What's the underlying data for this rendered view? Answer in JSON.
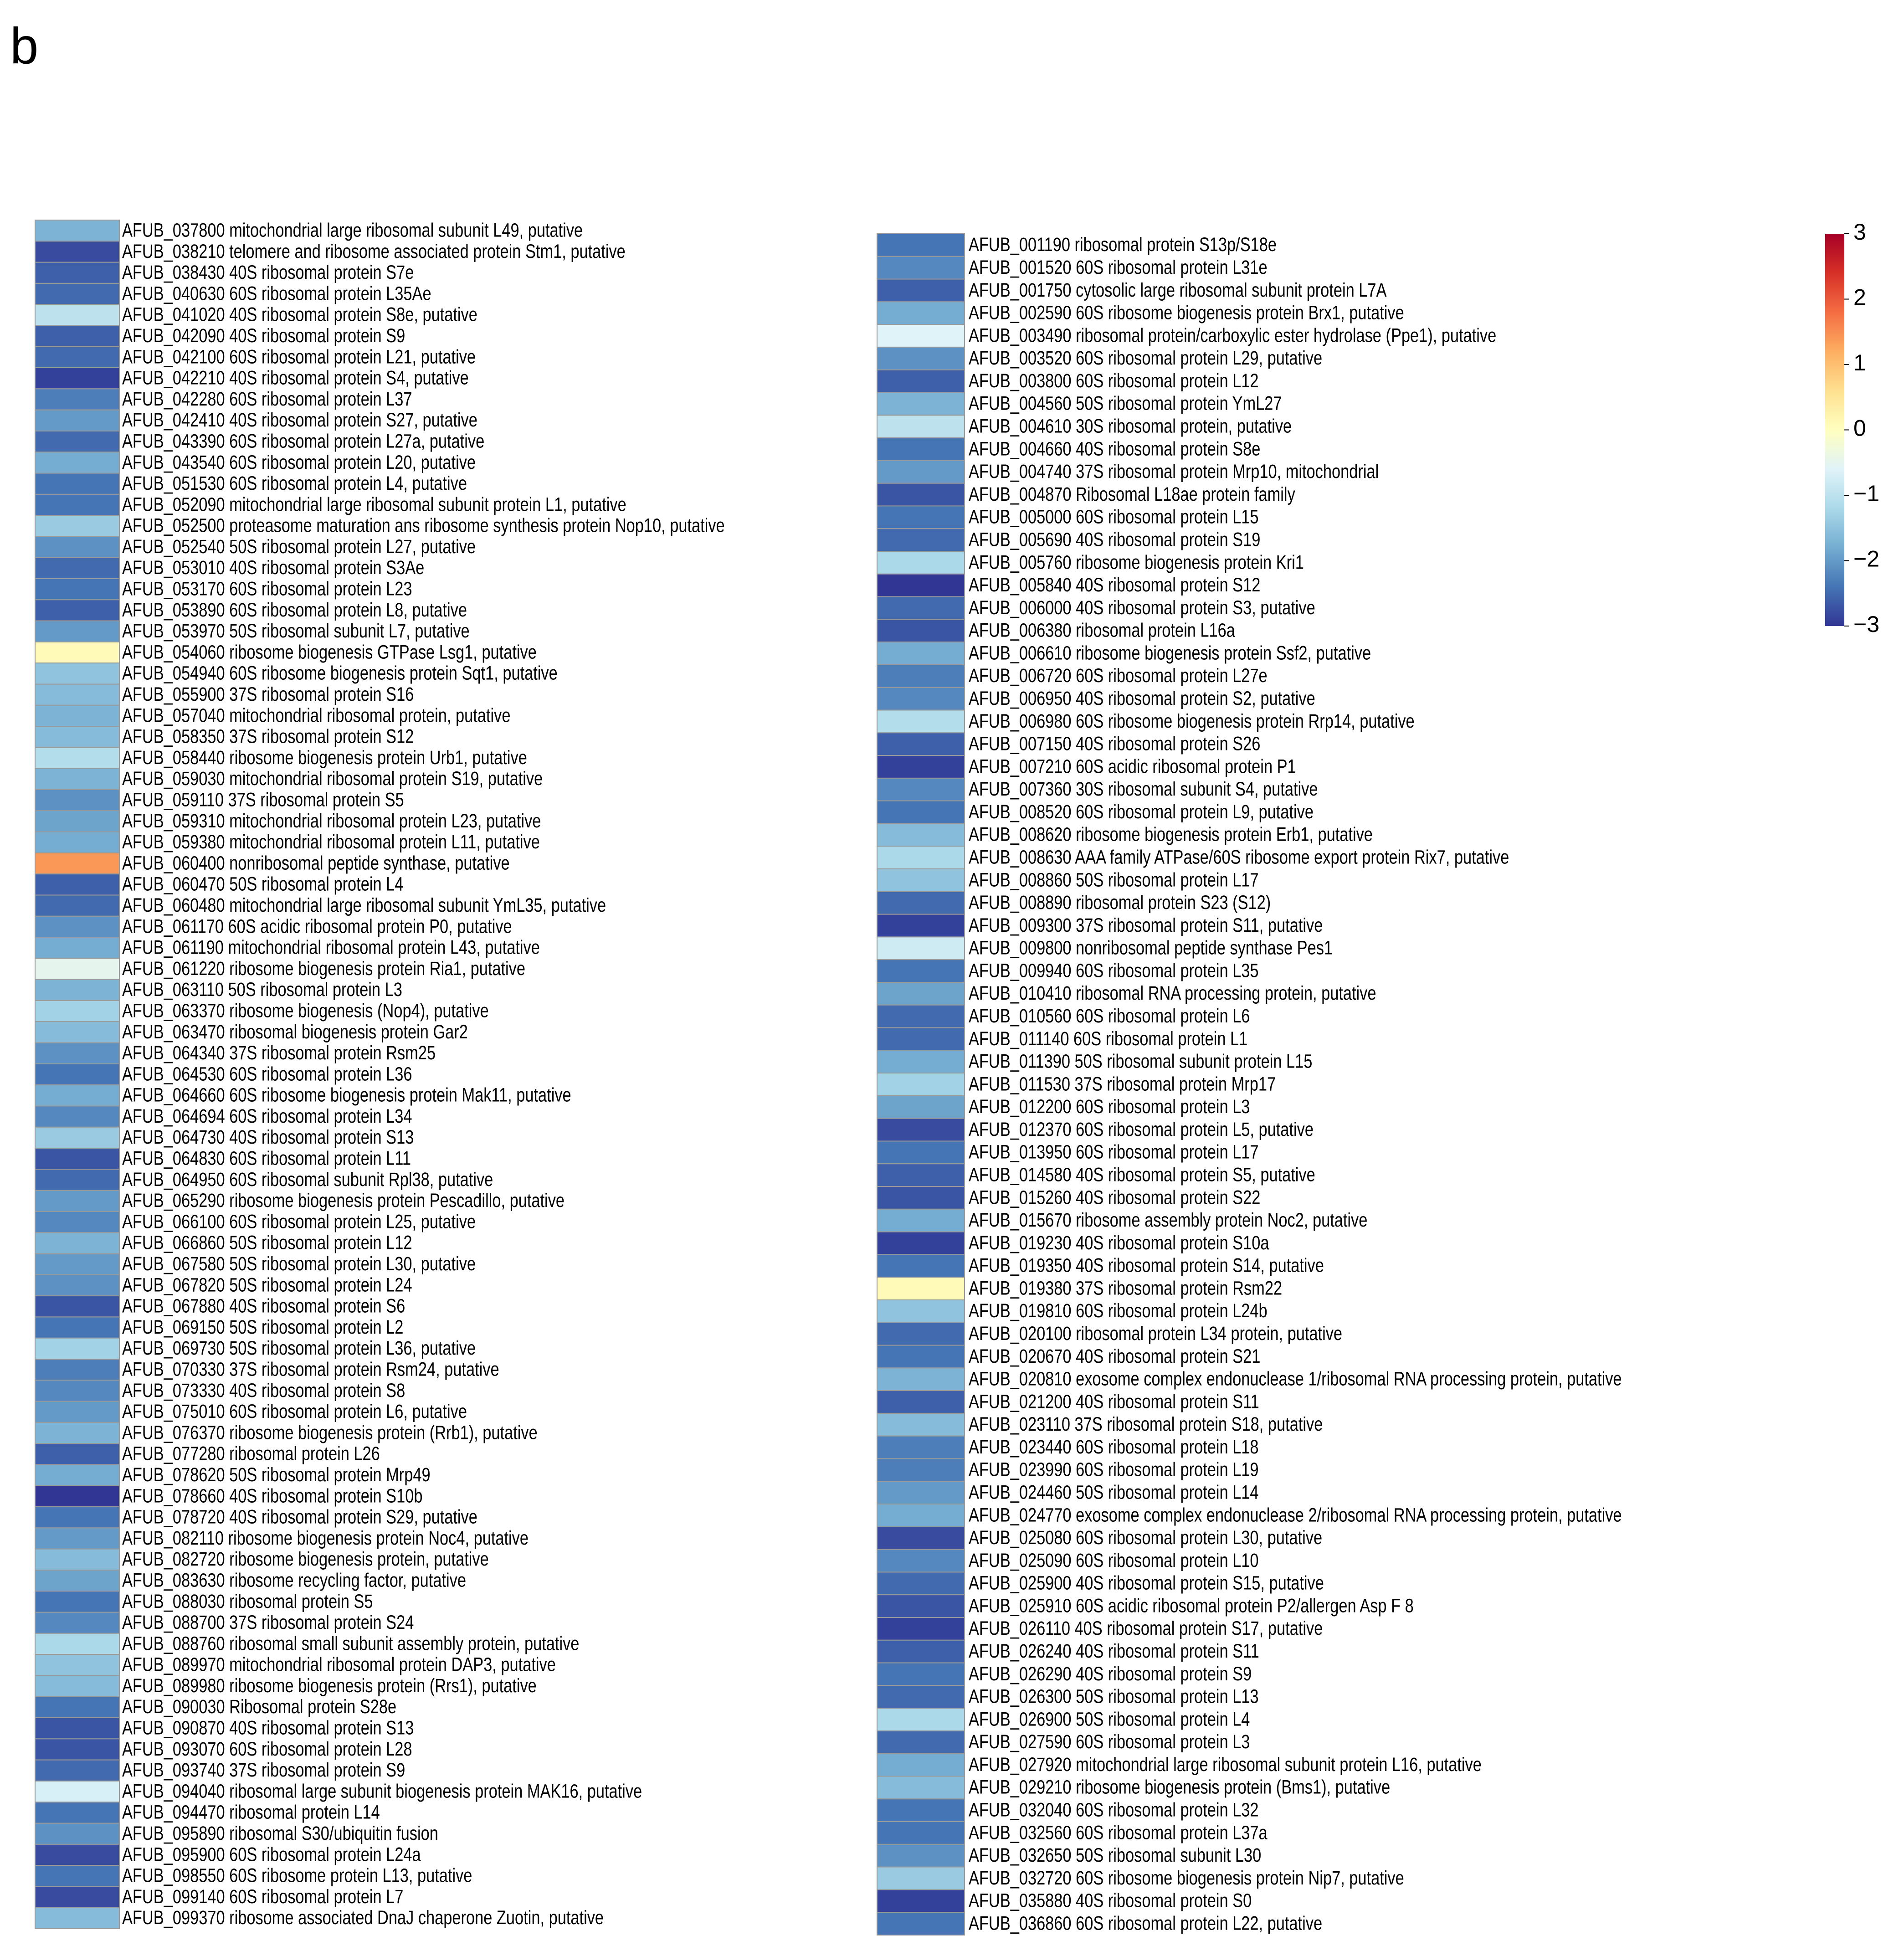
{
  "panel_label": "b",
  "chart_data": [
    {
      "type": "heatmap",
      "categories": [
        "AFUB_037800 mitochondrial large ribosomal subunit L49, putative",
        "AFUB_038210 telomere and ribosome associated protein Stm1, putative",
        "AFUB_038430 40S ribosomal protein S7e",
        "AFUB_040630 60S ribosomal protein L35Ae",
        "AFUB_041020 40S ribosomal protein S8e, putative",
        "AFUB_042090 40S ribosomal protein S9",
        "AFUB_042100 60S ribosomal protein L21, putative",
        "AFUB_042210 40S ribosomal protein S4, putative",
        "AFUB_042280 60S ribosomal protein L37",
        "AFUB_042410 40S ribosomal protein S27, putative",
        "AFUB_043390 60S ribosomal protein L27a, putative",
        "AFUB_043540 60S ribosomal protein L20, putative",
        "AFUB_051530 60S ribosomal protein L4, putative",
        "AFUB_052090 mitochondrial large ribosomal subunit protein L1, putative",
        "AFUB_052500 proteasome maturation ans ribosome synthesis protein Nop10, putative",
        "AFUB_052540 50S ribosomal protein L27, putative",
        "AFUB_053010 40S ribosomal protein S3Ae",
        "AFUB_053170 60S ribosomal protein L23",
        "AFUB_053890 60S ribosomal protein L8, putative",
        "AFUB_053970 50S ribosomal subunit L7, putative",
        "AFUB_054060 ribosome biogenesis GTPase Lsg1, putative",
        "AFUB_054940 60S ribosome biogenesis protein Sqt1, putative",
        "AFUB_055900 37S ribosomal protein S16",
        "AFUB_057040 mitochondrial ribosomal protein, putative",
        "AFUB_058350 37S ribosomal protein S12",
        "AFUB_058440 ribosome biogenesis protein Urb1, putative",
        "AFUB_059030 mitochondrial ribosomal protein S19, putative",
        "AFUB_059110 37S ribosomal protein S5",
        "AFUB_059310 mitochondrial ribosomal protein L23, putative",
        "AFUB_059380 mitochondrial ribosomal protein L11, putative",
        "AFUB_060400 nonribosomal peptide synthase, putative",
        "AFUB_060470 50S ribosomal protein L4",
        "AFUB_060480 mitochondrial large ribosomal subunit YmL35, putative",
        "AFUB_061170 60S acidic ribosomal protein P0, putative",
        "AFUB_061190 mitochondrial ribosomal protein L43, putative",
        "AFUB_061220 ribosome biogenesis protein Ria1, putative",
        "AFUB_063110 50S ribosomal protein L3",
        "AFUB_063370 ribosome biogenesis (Nop4), putative",
        "AFUB_063470 ribosomal biogenesis protein Gar2",
        "AFUB_064340 37S ribosomal protein Rsm25",
        "AFUB_064530 60S ribosomal protein L36",
        "AFUB_064660 60S ribosome biogenesis protein Mak11, putative",
        "AFUB_064694 60S ribosomal protein L34",
        "AFUB_064730 40S ribosomal protein S13",
        "AFUB_064830 60S ribosomal protein L11",
        "AFUB_064950 60S ribosomal subunit Rpl38, putative",
        "AFUB_065290 ribosome biogenesis protein Pescadillo, putative",
        "AFUB_066100 60S ribosomal protein L25, putative",
        "AFUB_066860 50S ribosomal protein L12",
        "AFUB_067580 50S ribosomal protein L30, putative",
        "AFUB_067820 50S ribosomal protein L24",
        "AFUB_067880 40S ribosomal protein S6",
        "AFUB_069150 50S ribosomal protein L2",
        "AFUB_069730 50S ribosomal protein L36, putative",
        "AFUB_070330 37S ribosomal protein Rsm24, putative",
        "AFUB_073330 40S ribosomal protein S8",
        "AFUB_075010 60S ribosomal protein L6, putative",
        "AFUB_076370 ribosome biogenesis protein (Rrb1), putative",
        "AFUB_077280 ribosomal protein L26",
        "AFUB_078620 50S ribosomal protein Mrp49",
        "AFUB_078660 40S ribosomal protein S10b",
        "AFUB_078720 40S ribosomal protein S29, putative",
        "AFUB_082110 ribosome biogenesis protein Noc4, putative",
        "AFUB_082720 ribosome biogenesis protein, putative",
        "AFUB_083630 ribosome recycling factor, putative",
        "AFUB_088030 ribosomal protein S5",
        "AFUB_088700 37S ribosomal protein S24",
        "AFUB_088760 ribosomal small subunit assembly protein, putative",
        "AFUB_089970 mitochondrial ribosomal protein DAP3, putative",
        "AFUB_089980 ribosome biogenesis protein (Rrs1), putative",
        "AFUB_090030 Ribosomal protein S28e",
        "AFUB_090870 40S ribosomal protein S13",
        "AFUB_093070 60S ribosomal protein L28",
        "AFUB_093740 37S ribosomal protein S9",
        "AFUB_094040 ribosomal large subunit biogenesis protein MAK16, putative",
        "AFUB_094470 ribosomal protein L14",
        "AFUB_095890 ribosomal S30/ubiquitin fusion",
        "AFUB_095900 60S ribosomal protein L24a",
        "AFUB_098550 60S ribosome protein L13, putative",
        "AFUB_099140 60S ribosomal protein L7",
        "AFUB_099370 ribosome associated DnaJ chaperone Zuotin, putative"
      ],
      "values": [
        -1.7,
        -2.8,
        -2.6,
        -2.5,
        -1.0,
        -2.6,
        -2.5,
        -2.9,
        -2.3,
        -2.0,
        -2.5,
        -1.8,
        -2.4,
        -2.4,
        -1.4,
        -2.1,
        -2.5,
        -2.4,
        -2.6,
        -2.0,
        0.1,
        -1.5,
        -1.6,
        -1.7,
        -1.6,
        -1.1,
        -1.7,
        -2.1,
        -1.9,
        -1.8,
        1.4,
        -2.6,
        -2.5,
        -2.1,
        -1.8,
        -0.5,
        -1.7,
        -1.3,
        -1.6,
        -2.1,
        -2.4,
        -1.8,
        -2.2,
        -1.4,
        -2.7,
        -2.5,
        -2.0,
        -2.2,
        -1.7,
        -2.0,
        -2.1,
        -2.7,
        -2.4,
        -1.3,
        -2.3,
        -2.2,
        -2.0,
        -1.7,
        -2.6,
        -1.8,
        -3.0,
        -2.4,
        -2.0,
        -1.6,
        -1.9,
        -2.4,
        -2.2,
        -1.2,
        -1.5,
        -1.6,
        -2.4,
        -2.7,
        -2.7,
        -2.5,
        -0.7,
        -2.4,
        -2.1,
        -2.8,
        -2.4,
        -2.8,
        -1.6
      ]
    },
    {
      "type": "heatmap",
      "categories": [
        "AFUB_001190 ribosomal protein S13p/S18e",
        "AFUB_001520 60S ribosomal protein L31e",
        "AFUB_001750 cytosolic large ribosomal subunit protein L7A",
        "AFUB_002590 60S ribosome biogenesis protein Brx1, putative",
        "AFUB_003490 ribosomal protein/carboxylic ester hydrolase (Ppe1), putative",
        "AFUB_003520 60S ribosomal protein L29, putative",
        "AFUB_003800 60S ribosomal protein L12",
        "AFUB_004560 50S ribosomal protein YmL27",
        "AFUB_004610 30S ribosomal protein, putative",
        "AFUB_004660 40S ribosomal protein S8e",
        "AFUB_004740 37S ribosomal protein Mrp10, mitochondrial",
        "AFUB_004870 Ribosomal L18ae protein family",
        "AFUB_005000 60S ribosomal protein L15",
        "AFUB_005690 40S ribosomal protein S19",
        "AFUB_005760 ribosome biogenesis protein Kri1",
        "AFUB_005840 40S ribosomal protein S12",
        "AFUB_006000 40S ribosomal protein S3, putative",
        "AFUB_006380 ribosomal protein L16a",
        "AFUB_006610 ribosome biogenesis protein Ssf2, putative",
        "AFUB_006720 60S ribosomal protein L27e",
        "AFUB_006950 40S ribosomal protein S2, putative",
        "AFUB_006980 60S ribosome biogenesis protein Rrp14, putative",
        "AFUB_007150 40S ribosomal protein S26",
        "AFUB_007210 60S acidic ribosomal protein P1",
        "AFUB_007360 30S ribosomal subunit S4, putative",
        "AFUB_008520 60S ribosomal protein L9, putative",
        "AFUB_008620 ribosome biogenesis protein Erb1, putative",
        "AFUB_008630 AAA family ATPase/60S ribosome export protein Rix7, putative",
        "AFUB_008860 50S ribosomal protein L17",
        "AFUB_008890 ribosomal protein S23 (S12)",
        "AFUB_009300 37S ribosomal protein S11, putative",
        "AFUB_009800 nonribosomal peptide synthase Pes1",
        "AFUB_009940 60S ribosomal protein L35",
        "AFUB_010410 ribosomal RNA processing protein, putative",
        "AFUB_010560 60S ribosomal protein L6",
        "AFUB_011140 60S ribosomal protein L1",
        "AFUB_011390 50S ribosomal subunit protein L15",
        "AFUB_011530 37S ribosomal protein Mrp17",
        "AFUB_012200 60S ribosomal protein L3",
        "AFUB_012370 60S ribosomal protein L5, putative",
        "AFUB_013950 60S ribosomal protein L17",
        "AFUB_014580 40S ribosomal protein S5, putative",
        "AFUB_015260 40S ribosomal protein S22",
        "AFUB_015670 ribosome assembly protein Noc2, putative",
        "AFUB_019230 40S ribosomal protein S10a",
        "AFUB_019350 40S ribosomal protein S14, putative",
        "AFUB_019380 37S ribosomal protein Rsm22",
        "AFUB_019810 60S ribosomal protein L24b",
        "AFUB_020100 ribosomal protein L34 protein, putative",
        "AFUB_020670 40S ribosomal protein S21",
        "AFUB_020810 exosome complex endonuclease 1/ribosomal RNA processing protein, putative",
        "AFUB_021200 40S ribosomal protein S11",
        "AFUB_023110 37S ribosomal protein S18, putative",
        "AFUB_023440 60S ribosomal protein L18",
        "AFUB_023990 60S ribosomal protein L19",
        "AFUB_024460 50S ribosomal protein L14",
        "AFUB_024770 exosome complex endonuclease 2/ribosomal RNA processing protein, putative",
        "AFUB_025080 60S ribosomal protein L30, putative",
        "AFUB_025090 60S ribosomal protein L10",
        "AFUB_025900 40S ribosomal protein S15, putative",
        "AFUB_025910 60S acidic ribosomal protein P2/allergen Asp F 8",
        "AFUB_026110 40S ribosomal protein S17, putative",
        "AFUB_026240 40S ribosomal protein S11",
        "AFUB_026290 40S ribosomal protein S9",
        "AFUB_026300 50S ribosomal protein L13",
        "AFUB_026900 50S ribosomal protein L4",
        "AFUB_027590 60S ribosomal protein L3",
        "AFUB_027920 mitochondrial large ribosomal subunit protein L16, putative",
        "AFUB_029210 ribosome biogenesis protein (Bms1), putative",
        "AFUB_032040 60S ribosomal protein L32",
        "AFUB_032560 60S ribosomal protein L37a",
        "AFUB_032650 50S ribosomal subunit L30",
        "AFUB_032720 60S ribosome biogenesis protein Nip7, putative",
        "AFUB_035880 40S ribosomal protein S0",
        "AFUB_036860 60S ribosomal protein L22, putative"
      ],
      "values": [
        -2.4,
        -2.2,
        -2.6,
        -1.8,
        -0.6,
        -2.1,
        -2.6,
        -1.7,
        -1.0,
        -2.4,
        -2.0,
        -2.7,
        -2.4,
        -2.5,
        -1.2,
        -3.0,
        -2.5,
        -2.7,
        -1.8,
        -2.3,
        -2.2,
        -1.1,
        -2.6,
        -2.9,
        -2.2,
        -2.4,
        -1.6,
        -1.2,
        -1.5,
        -2.5,
        -2.9,
        -0.8,
        -2.4,
        -1.9,
        -2.5,
        -2.5,
        -1.8,
        -1.3,
        -1.9,
        -2.8,
        -2.4,
        -2.6,
        -2.7,
        -1.8,
        -2.9,
        -2.4,
        0.1,
        -1.5,
        -2.5,
        -2.4,
        -1.7,
        -2.6,
        -1.6,
        -2.3,
        -2.3,
        -2.0,
        -1.8,
        -2.8,
        -2.2,
        -2.5,
        -2.7,
        -2.9,
        -2.6,
        -2.4,
        -2.5,
        -1.2,
        -2.5,
        -1.8,
        -1.6,
        -2.4,
        -2.4,
        -2.1,
        -1.4,
        -2.9,
        -2.4
      ]
    }
  ],
  "colorbar": {
    "clim": [
      -3,
      3
    ],
    "ticks": [
      3,
      2,
      1,
      0,
      {
        "value": -1,
        "label": "−1"
      },
      {
        "value": -2,
        "label": "−2"
      },
      {
        "value": -3,
        "label": "−3"
      }
    ],
    "colormap": [
      "#313695",
      "#4575b4",
      "#74add1",
      "#abd9e9",
      "#e0f3f8",
      "#ffffbf",
      "#fee090",
      "#fdae61",
      "#f46d43",
      "#d73027",
      "#a50026"
    ]
  }
}
